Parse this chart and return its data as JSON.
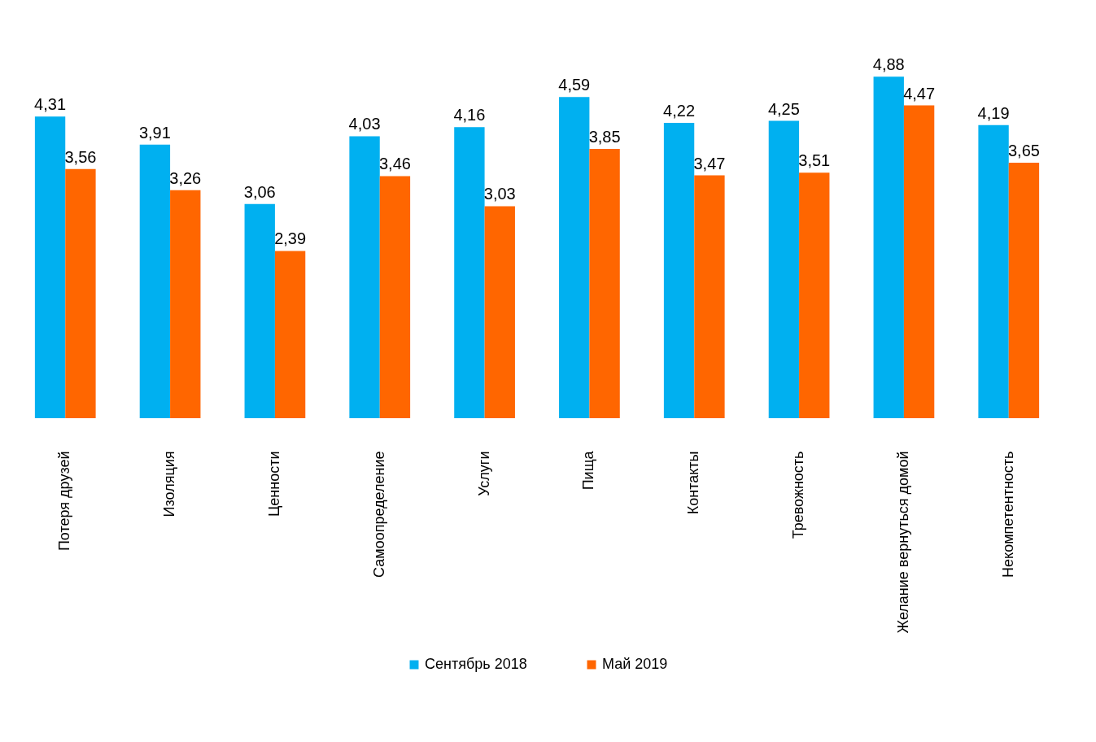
{
  "chart_data": {
    "type": "bar",
    "categories": [
      "Потеря друзей",
      "Изоляция",
      "Ценности",
      "Самоопределение",
      "Услуги",
      "Пища",
      "Контакты",
      "Тревожность",
      "Желание вернуться домой",
      "Некомпетентность"
    ],
    "series": [
      {
        "name": "Сентябрь 2018",
        "color": "#00b0f0",
        "values": [
          4.31,
          3.91,
          3.06,
          4.03,
          4.16,
          4.59,
          4.22,
          4.25,
          4.88,
          4.19
        ],
        "value_labels": [
          "4,31",
          "3,91",
          "3,06",
          "4,03",
          "4,16",
          "4,59",
          "4,22",
          "4,25",
          "4,88",
          "4,19"
        ]
      },
      {
        "name": "Май 2019",
        "color": "#ff6600",
        "values": [
          3.56,
          3.26,
          2.39,
          3.46,
          3.03,
          3.85,
          3.47,
          3.51,
          4.47,
          3.65
        ],
        "value_labels": [
          "3,56",
          "3,26",
          "2,39",
          "3,46",
          "3,03",
          "3,85",
          "3,47",
          "3,51",
          "4,47",
          "3,65"
        ]
      }
    ],
    "legend": "bottom",
    "grid": false
  }
}
